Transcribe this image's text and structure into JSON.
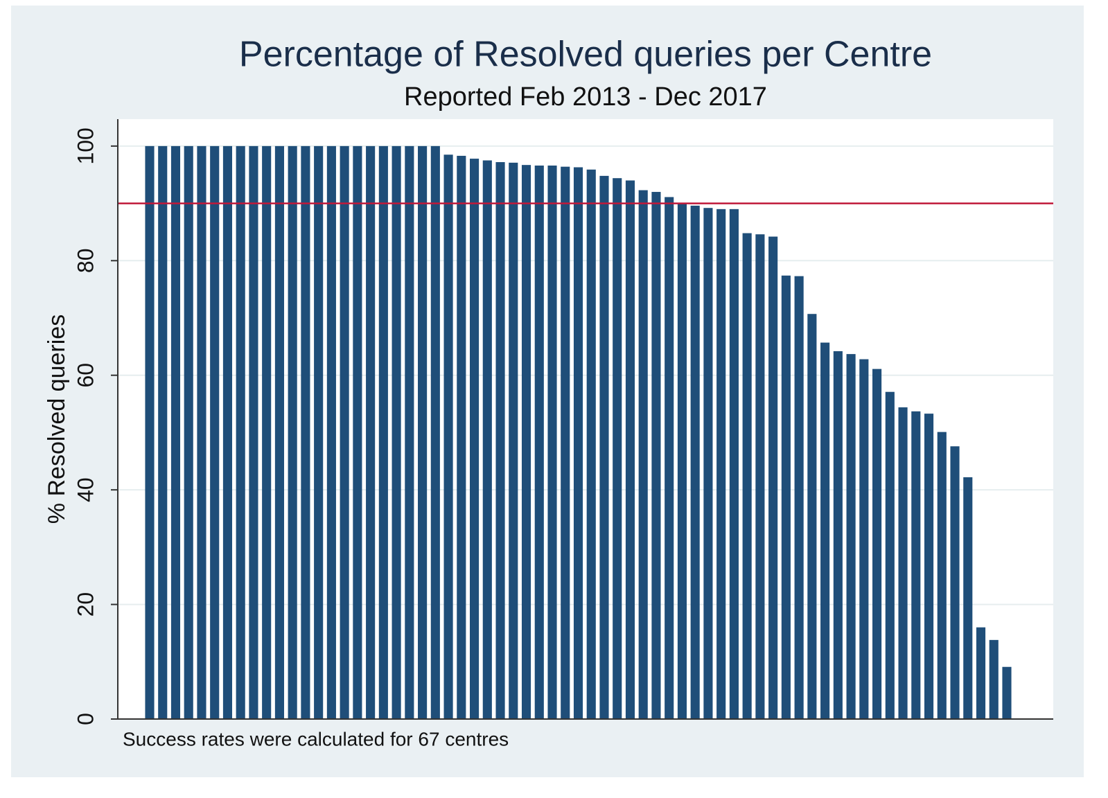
{
  "chart_data": {
    "type": "bar",
    "title": "Percentage of Resolved queries per Centre",
    "subtitle": "Reported Feb 2013 - Dec 2017",
    "y_label": "% Resolved queries",
    "note": "Success rates were calculated for 67 centres",
    "color": "#1f4e79",
    "values": [
      100,
      100,
      100,
      100,
      100,
      100,
      100,
      100,
      100,
      100,
      100,
      100,
      100,
      100,
      100,
      100,
      100,
      100,
      100,
      100,
      100,
      100,
      100,
      98.5,
      98.3,
      97.8,
      97.5,
      97.2,
      97.1,
      96.7,
      96.6,
      96.6,
      96.4,
      96.3,
      95.9,
      94.8,
      94.4,
      94.0,
      92.3,
      92.0,
      91.1,
      90.1,
      89.6,
      89.2,
      89.0,
      89.0,
      84.8,
      84.6,
      84.2,
      77.4,
      77.3,
      70.7,
      65.7,
      64.2,
      63.7,
      62.8,
      61.1,
      57.1,
      54.4,
      53.7,
      53.3,
      50.1,
      47.6,
      42.2,
      16.0,
      13.8,
      9.1
    ],
    "ylim": [
      0,
      104.7
    ],
    "yticks": [
      0,
      20,
      40,
      60,
      80,
      100
    ],
    "grid": true,
    "reference_line": {
      "value": 90,
      "color": "#c0193a"
    }
  }
}
